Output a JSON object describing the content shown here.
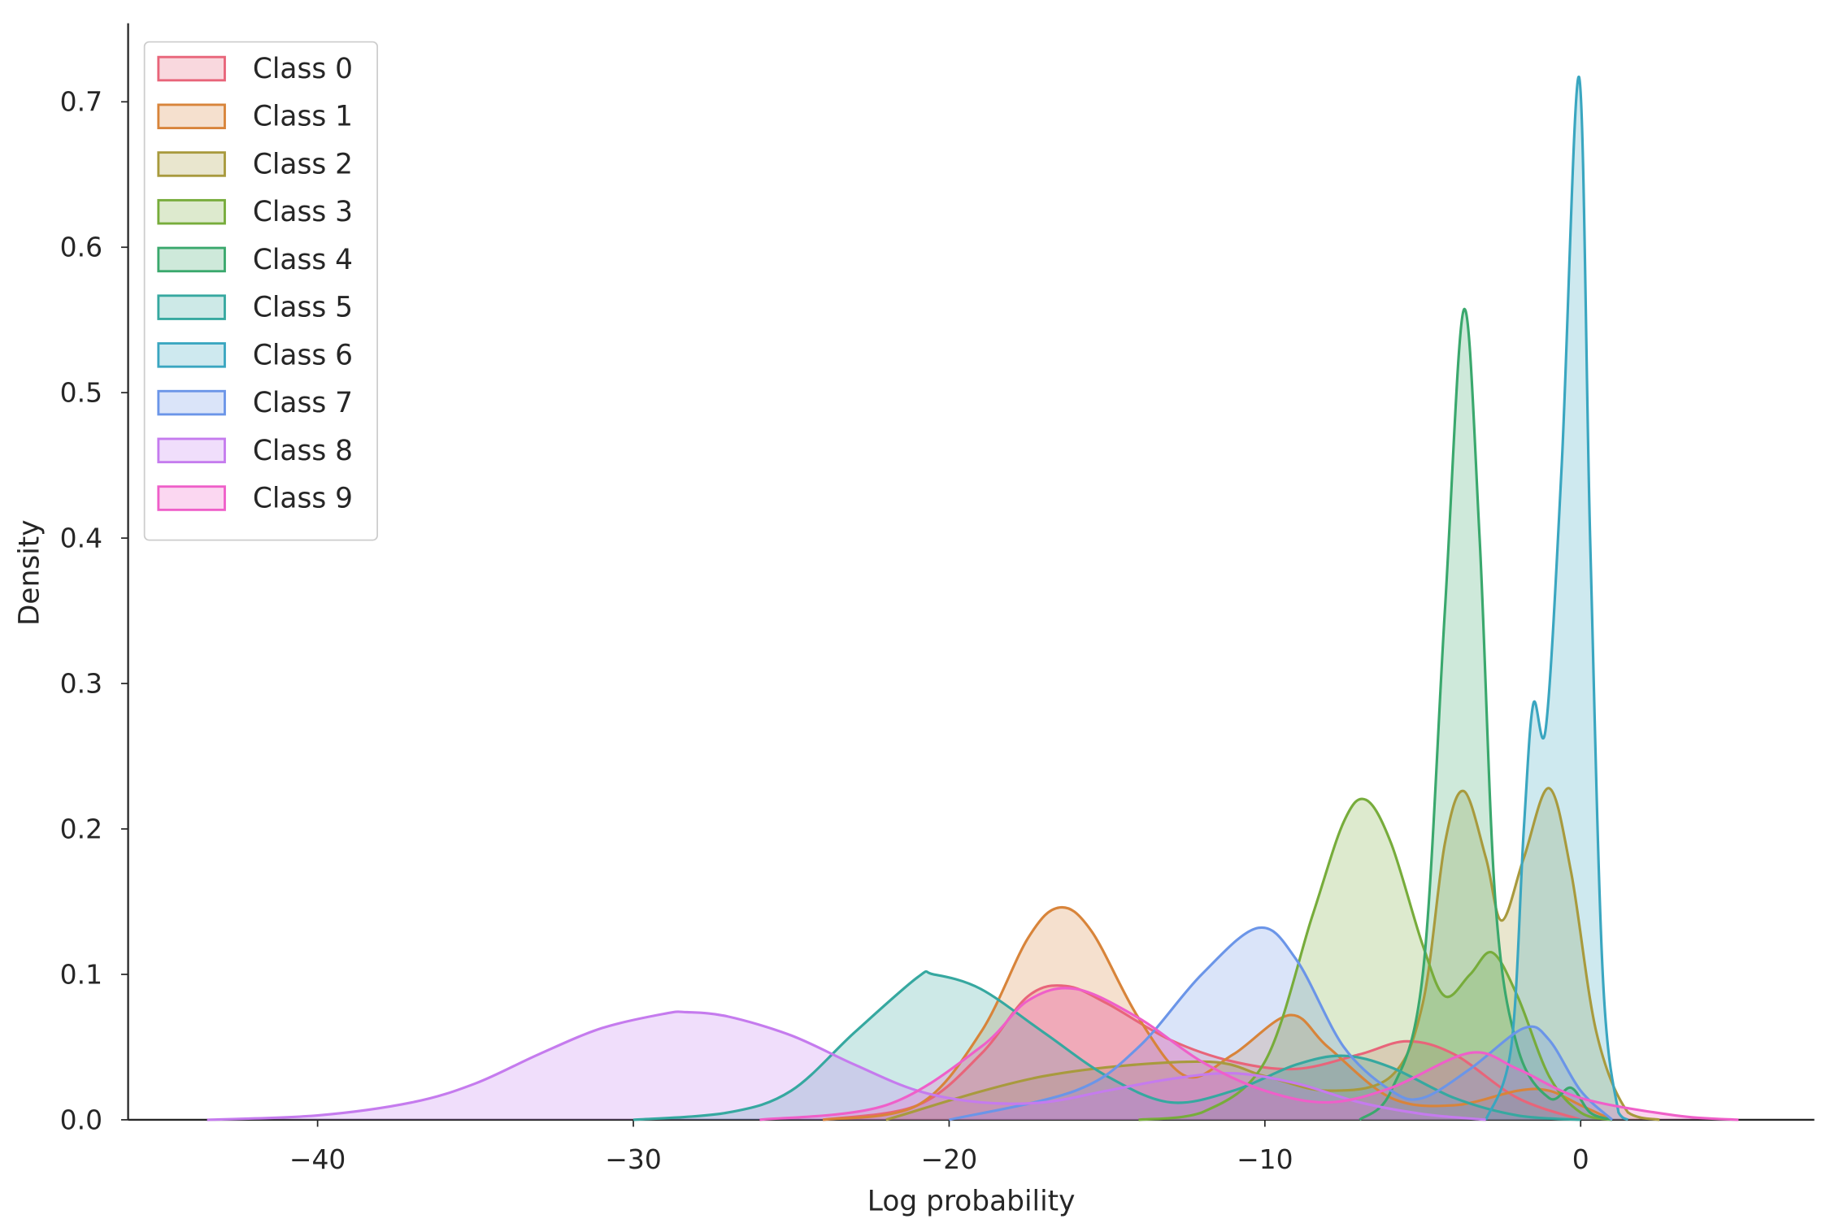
{
  "chart_data": {
    "type": "kde",
    "x_label": "Log probability",
    "y_label": "Density",
    "xlim": [
      -46,
      7.4
    ],
    "ylim": [
      0,
      0.754
    ],
    "xticks": [
      {
        "value": -40,
        "label": "−40"
      },
      {
        "value": -30,
        "label": "−30"
      },
      {
        "value": -20,
        "label": "−20"
      },
      {
        "value": -10,
        "label": "−10"
      },
      0
    ],
    "yticks": [
      {
        "value": 0,
        "label": "0.0"
      },
      0.1,
      0.2,
      0.3,
      0.4,
      0.5,
      0.6,
      0.7
    ],
    "grid": false,
    "legend": "upper left",
    "series": [
      {
        "name": "Class 0",
        "color": "#e8657a",
        "x": [
          -24,
          -21,
          -19,
          -17.5,
          -16.3,
          -15,
          -13,
          -11,
          -9,
          -7,
          -5.5,
          -4,
          -2,
          0
        ],
        "values": [
          0,
          0.01,
          0.045,
          0.085,
          0.092,
          0.08,
          0.055,
          0.04,
          0.035,
          0.045,
          0.054,
          0.045,
          0.015,
          0
        ]
      },
      {
        "name": "Class 1",
        "color": "#d8843a",
        "x": [
          -24,
          -21,
          -19,
          -17.5,
          -16.5,
          -15.5,
          -14,
          -12.5,
          -11,
          -9.2,
          -8,
          -6,
          -4,
          -2,
          -1,
          0,
          1
        ],
        "values": [
          0,
          0.01,
          0.06,
          0.125,
          0.146,
          0.13,
          0.07,
          0.03,
          0.045,
          0.072,
          0.05,
          0.015,
          0.01,
          0.02,
          0.02,
          0.01,
          0
        ]
      },
      {
        "name": "Class 2",
        "color": "#a89a3d",
        "x": [
          -22,
          -17,
          -12,
          -10,
          -8,
          -6,
          -5,
          -4.3,
          -3.7,
          -3,
          -2.5,
          -1.8,
          -1,
          -0.3,
          0.5,
          1.5,
          2.5
        ],
        "values": [
          0,
          0.03,
          0.04,
          0.03,
          0.02,
          0.03,
          0.08,
          0.19,
          0.226,
          0.18,
          0.137,
          0.18,
          0.228,
          0.17,
          0.06,
          0.005,
          0
        ]
      },
      {
        "name": "Class 3",
        "color": "#77ac3b",
        "x": [
          -14,
          -12,
          -10,
          -8.5,
          -7.5,
          -6.8,
          -6,
          -5,
          -4.3,
          -3.5,
          -2.8,
          -2,
          -1,
          0,
          1
        ],
        "values": [
          0,
          0.005,
          0.04,
          0.14,
          0.205,
          0.22,
          0.19,
          0.12,
          0.085,
          0.1,
          0.115,
          0.085,
          0.03,
          0.005,
          0
        ]
      },
      {
        "name": "Class 4",
        "color": "#3aa86d",
        "x": [
          -7,
          -6,
          -5,
          -4.3,
          -3.7,
          -3.2,
          -2.7,
          -2,
          -1,
          -0.3,
          0.3,
          1
        ],
        "values": [
          0,
          0.02,
          0.1,
          0.35,
          0.557,
          0.4,
          0.15,
          0.05,
          0.015,
          0.022,
          0.005,
          0
        ]
      },
      {
        "name": "Class 5",
        "color": "#36a8a0",
        "x": [
          -30,
          -27,
          -25,
          -23,
          -21,
          -20.5,
          -19,
          -17,
          -15,
          -13,
          -11,
          -9,
          -7.5,
          -6,
          -4,
          -2,
          0
        ],
        "values": [
          0,
          0.005,
          0.02,
          0.06,
          0.098,
          0.1,
          0.09,
          0.06,
          0.03,
          0.012,
          0.02,
          0.038,
          0.044,
          0.036,
          0.015,
          0.003,
          0
        ]
      },
      {
        "name": "Class 6",
        "color": "#3aa6c0",
        "x": [
          -3,
          -2.2,
          -1.8,
          -1.5,
          -1.1,
          -0.6,
          -0.05,
          0.3,
          0.7,
          1.2,
          1.5
        ],
        "values": [
          0,
          0.05,
          0.2,
          0.286,
          0.27,
          0.45,
          0.717,
          0.4,
          0.1,
          0.005,
          0
        ]
      },
      {
        "name": "Class 7",
        "color": "#6b95e8",
        "x": [
          -20,
          -16,
          -14,
          -12,
          -10.2,
          -9,
          -7.5,
          -6,
          -5,
          -3.5,
          -1.8,
          -1,
          0,
          1
        ],
        "values": [
          0,
          0.02,
          0.05,
          0.1,
          0.132,
          0.11,
          0.05,
          0.02,
          0.015,
          0.035,
          0.063,
          0.055,
          0.02,
          0
        ]
      },
      {
        "name": "Class 8",
        "color": "#c57bee",
        "x": [
          -43.5,
          -40,
          -37,
          -35,
          -33,
          -31,
          -29,
          -28.3,
          -27,
          -25,
          -23,
          -21,
          -19,
          -17,
          -15,
          -13,
          -11,
          -9,
          -7,
          -5,
          -3
        ],
        "values": [
          0,
          0.003,
          0.012,
          0.025,
          0.045,
          0.063,
          0.073,
          0.074,
          0.071,
          0.058,
          0.038,
          0.02,
          0.012,
          0.012,
          0.02,
          0.028,
          0.032,
          0.025,
          0.012,
          0.004,
          0
        ]
      },
      {
        "name": "Class 9",
        "color": "#ef5fc9",
        "x": [
          -26,
          -22,
          -19,
          -17.5,
          -16,
          -14,
          -12,
          -10,
          -8,
          -6,
          -3.5,
          -2,
          0,
          3,
          5
        ],
        "values": [
          0,
          0.01,
          0.05,
          0.082,
          0.09,
          0.07,
          0.04,
          0.02,
          0.012,
          0.022,
          0.046,
          0.035,
          0.015,
          0.003,
          0
        ]
      }
    ]
  }
}
